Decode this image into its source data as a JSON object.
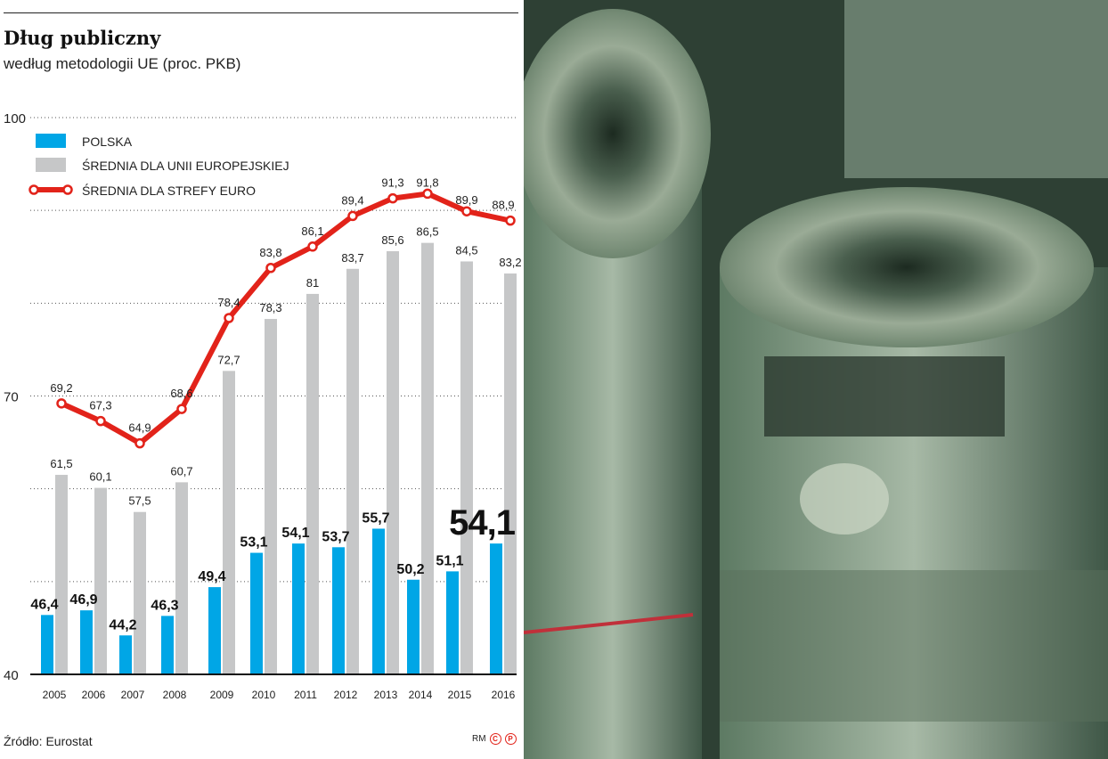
{
  "chart_data": {
    "type": "bar",
    "title": "Dług publiczny",
    "subtitle": "według metodologii UE (proc. PKB)",
    "categories": [
      "2005",
      "2006",
      "2007",
      "2008",
      "2009",
      "2010",
      "2011",
      "2012",
      "2013",
      "2014",
      "2015",
      "2016"
    ],
    "ylim": [
      40,
      100
    ],
    "yticks": [
      "40",
      "70",
      "100"
    ],
    "grid": true,
    "legend_position": "top-left",
    "series": [
      {
        "name": "POLSKA",
        "type": "bar",
        "color": "#00a6e6",
        "labels": [
          "46,4",
          "46,9",
          "44,2",
          "46,3",
          "49,4",
          "53,1",
          "54,1",
          "53,7",
          "55,7",
          "50,2",
          "51,1",
          "54,1"
        ],
        "values": [
          46.4,
          46.9,
          44.2,
          46.3,
          49.4,
          53.1,
          54.1,
          53.7,
          55.7,
          50.2,
          51.1,
          54.1
        ]
      },
      {
        "name": "ŚREDNIA DLA UNII EUROPEJSKIEJ",
        "type": "bar",
        "color": "#c6c7c8",
        "labels": [
          "61,5",
          "60,1",
          "57,5",
          "60,7",
          "72,7",
          "78,3",
          "81",
          "83,7",
          "85,6",
          "86,5",
          "84,5",
          "83,2"
        ],
        "values": [
          61.5,
          60.1,
          57.5,
          60.7,
          72.7,
          78.3,
          81,
          83.7,
          85.6,
          86.5,
          84.5,
          83.2
        ]
      },
      {
        "name": "ŚREDNIA DLA STREFY EURO",
        "type": "line",
        "color": "#e2231a",
        "labels": [
          "69,2",
          "67,3",
          "64,9",
          "68,6",
          "78,4",
          "83,8",
          "86,1",
          "89,4",
          "91,3",
          "91,8",
          "89,9",
          "88,9"
        ],
        "values": [
          69.2,
          67.3,
          64.9,
          68.6,
          78.4,
          83.8,
          86.1,
          89.4,
          91.3,
          91.8,
          89.9,
          88.9
        ]
      }
    ]
  },
  "footer": {
    "source": "Źródło: Eurostat",
    "credit": "RM",
    "logo_c": "C",
    "logo_p": "P"
  }
}
